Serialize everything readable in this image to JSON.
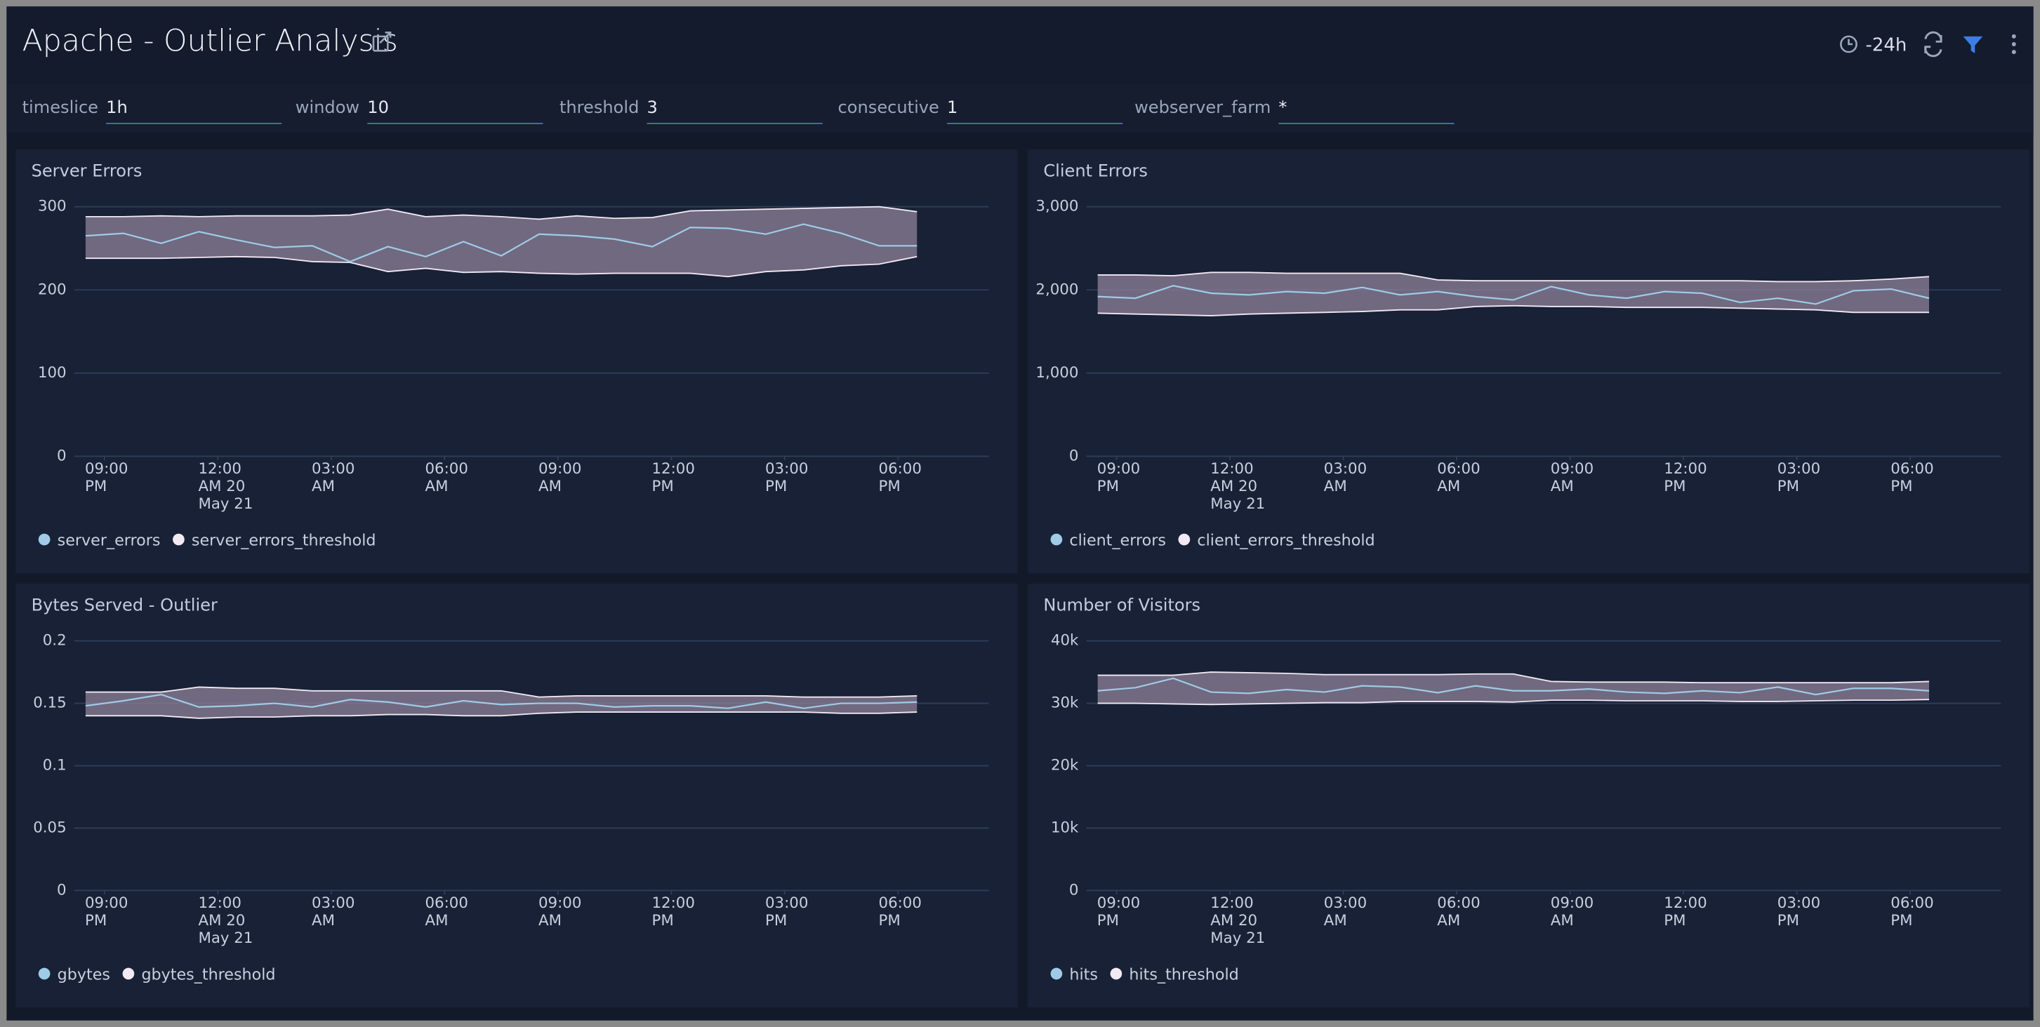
{
  "header": {
    "title": "Apache - Outlier Analysis",
    "time_range": "-24h"
  },
  "filters": [
    {
      "label": "timeslice",
      "value": "1h"
    },
    {
      "label": "window",
      "value": "10"
    },
    {
      "label": "threshold",
      "value": "3"
    },
    {
      "label": "consecutive",
      "value": "1"
    },
    {
      "label": "webserver_farm",
      "value": "*"
    }
  ],
  "chart_data": [
    {
      "type": "line",
      "title": "Server Errors",
      "x": [
        -3.5,
        -2.5,
        -1.5,
        -0.5,
        0.5,
        1.5,
        2.5,
        3.5,
        4.5,
        5.5,
        6.5,
        7.5,
        8.5,
        9.5,
        10.5,
        11.5,
        12.5,
        13.5,
        14.5,
        15.5,
        16.5,
        17.5,
        18.5
      ],
      "xlim": [
        -3.8,
        20.4
      ],
      "xticks": [
        {
          "value": -3,
          "label": "09:00\nPM"
        },
        {
          "value": 0,
          "label": "12:00\nAM 20\nMay 21"
        },
        {
          "value": 3,
          "label": "03:00\nAM"
        },
        {
          "value": 6,
          "label": "06:00\nAM"
        },
        {
          "value": 9,
          "label": "09:00\nAM"
        },
        {
          "value": 12,
          "label": "12:00\nPM"
        },
        {
          "value": 15,
          "label": "03:00\nPM"
        },
        {
          "value": 18,
          "label": "06:00\nPM"
        }
      ],
      "ylim": [
        0,
        300
      ],
      "yticks": [
        0,
        100,
        200,
        300
      ],
      "grid": true,
      "series": [
        {
          "name": "server_errors",
          "color": "#9fcbe6",
          "values": [
            265,
            268,
            256,
            270,
            260,
            251,
            253,
            234,
            252,
            240,
            258,
            241,
            267,
            265,
            261,
            252,
            275,
            274,
            267,
            279,
            268,
            253,
            253
          ]
        },
        {
          "name": "server_errors_threshold",
          "color": "#f2e9f2",
          "values": [
            288,
            288,
            289,
            288,
            289,
            289,
            289,
            290,
            297,
            288,
            290,
            288,
            285,
            289,
            286,
            287,
            295,
            296,
            297,
            298,
            299,
            300,
            294
          ],
          "lower": [
            238,
            238,
            238,
            239,
            240,
            239,
            234,
            233,
            222,
            226,
            221,
            222,
            220,
            219,
            220,
            220,
            220,
            216,
            222,
            224,
            229,
            231,
            240
          ]
        }
      ]
    },
    {
      "type": "line",
      "title": "Client Errors",
      "x": [
        -3.5,
        -2.5,
        -1.5,
        -0.5,
        0.5,
        1.5,
        2.5,
        3.5,
        4.5,
        5.5,
        6.5,
        7.5,
        8.5,
        9.5,
        10.5,
        11.5,
        12.5,
        13.5,
        14.5,
        15.5,
        16.5,
        17.5,
        18.5
      ],
      "xlim": [
        -3.8,
        20.4
      ],
      "xticks": [
        {
          "value": -3,
          "label": "09:00\nPM"
        },
        {
          "value": 0,
          "label": "12:00\nAM 20\nMay 21"
        },
        {
          "value": 3,
          "label": "03:00\nAM"
        },
        {
          "value": 6,
          "label": "06:00\nAM"
        },
        {
          "value": 9,
          "label": "09:00\nAM"
        },
        {
          "value": 12,
          "label": "12:00\nPM"
        },
        {
          "value": 15,
          "label": "03:00\nPM"
        },
        {
          "value": 18,
          "label": "06:00\nPM"
        }
      ],
      "ylim": [
        0,
        3000
      ],
      "yticks": [
        0,
        {
          "value": 1000,
          "label": "1,000"
        },
        {
          "value": 2000,
          "label": "2,000"
        },
        {
          "value": 3000,
          "label": "3,000"
        }
      ],
      "grid": true,
      "series": [
        {
          "name": "client_errors",
          "color": "#9fcbe6",
          "values": [
            1920,
            1900,
            2050,
            1960,
            1940,
            1980,
            1960,
            2030,
            1940,
            1980,
            1920,
            1880,
            2040,
            1940,
            1900,
            1980,
            1960,
            1850,
            1900,
            1830,
            1990,
            2010,
            1900
          ]
        },
        {
          "name": "client_errors_threshold",
          "color": "#f2e9f2",
          "values": [
            2180,
            2180,
            2170,
            2210,
            2210,
            2200,
            2200,
            2200,
            2200,
            2120,
            2110,
            2110,
            2110,
            2110,
            2110,
            2110,
            2110,
            2110,
            2100,
            2100,
            2110,
            2130,
            2160
          ],
          "lower": [
            1720,
            1710,
            1700,
            1690,
            1710,
            1720,
            1730,
            1740,
            1760,
            1760,
            1800,
            1810,
            1800,
            1800,
            1790,
            1790,
            1790,
            1780,
            1770,
            1760,
            1730,
            1730,
            1730
          ]
        }
      ]
    },
    {
      "type": "line",
      "title": "Bytes Served - Outlier",
      "x": [
        -3.5,
        -2.5,
        -1.5,
        -0.5,
        0.5,
        1.5,
        2.5,
        3.5,
        4.5,
        5.5,
        6.5,
        7.5,
        8.5,
        9.5,
        10.5,
        11.5,
        12.5,
        13.5,
        14.5,
        15.5,
        16.5,
        17.5,
        18.5
      ],
      "xlim": [
        -3.8,
        20.4
      ],
      "xticks": [
        {
          "value": -3,
          "label": "09:00\nPM"
        },
        {
          "value": 0,
          "label": "12:00\nAM 20\nMay 21"
        },
        {
          "value": 3,
          "label": "03:00\nAM"
        },
        {
          "value": 6,
          "label": "06:00\nAM"
        },
        {
          "value": 9,
          "label": "09:00\nAM"
        },
        {
          "value": 12,
          "label": "12:00\nPM"
        },
        {
          "value": 15,
          "label": "03:00\nPM"
        },
        {
          "value": 18,
          "label": "06:00\nPM"
        }
      ],
      "ylim": [
        0,
        0.2
      ],
      "yticks": [
        0,
        0.05,
        0.1,
        0.15,
        0.2
      ],
      "grid": true,
      "series": [
        {
          "name": "gbytes",
          "color": "#9fcbe6",
          "values": [
            0.148,
            0.152,
            0.157,
            0.147,
            0.148,
            0.15,
            0.147,
            0.153,
            0.151,
            0.147,
            0.152,
            0.149,
            0.15,
            0.15,
            0.147,
            0.148,
            0.148,
            0.146,
            0.151,
            0.146,
            0.15,
            0.15,
            0.151
          ]
        },
        {
          "name": "gbytes_threshold",
          "color": "#f2e9f2",
          "values": [
            0.159,
            0.159,
            0.159,
            0.163,
            0.162,
            0.162,
            0.16,
            0.16,
            0.16,
            0.16,
            0.16,
            0.16,
            0.155,
            0.156,
            0.156,
            0.156,
            0.156,
            0.156,
            0.156,
            0.155,
            0.155,
            0.155,
            0.156
          ],
          "lower": [
            0.14,
            0.14,
            0.14,
            0.138,
            0.139,
            0.139,
            0.14,
            0.14,
            0.141,
            0.141,
            0.14,
            0.14,
            0.142,
            0.143,
            0.143,
            0.143,
            0.143,
            0.143,
            0.143,
            0.143,
            0.142,
            0.142,
            0.143
          ]
        }
      ]
    },
    {
      "type": "line",
      "title": "Number of Visitors",
      "x": [
        -3.5,
        -2.5,
        -1.5,
        -0.5,
        0.5,
        1.5,
        2.5,
        3.5,
        4.5,
        5.5,
        6.5,
        7.5,
        8.5,
        9.5,
        10.5,
        11.5,
        12.5,
        13.5,
        14.5,
        15.5,
        16.5,
        17.5,
        18.5
      ],
      "xlim": [
        -3.8,
        20.4
      ],
      "xticks": [
        {
          "value": -3,
          "label": "09:00\nPM"
        },
        {
          "value": 0,
          "label": "12:00\nAM 20\nMay 21"
        },
        {
          "value": 3,
          "label": "03:00\nAM"
        },
        {
          "value": 6,
          "label": "06:00\nAM"
        },
        {
          "value": 9,
          "label": "09:00\nAM"
        },
        {
          "value": 12,
          "label": "12:00\nPM"
        },
        {
          "value": 15,
          "label": "03:00\nPM"
        },
        {
          "value": 18,
          "label": "06:00\nPM"
        }
      ],
      "ylim": [
        0,
        40000
      ],
      "yticks": [
        0,
        {
          "value": 10000,
          "label": "10k"
        },
        {
          "value": 20000,
          "label": "20k"
        },
        {
          "value": 30000,
          "label": "30k"
        },
        {
          "value": 40000,
          "label": "40k"
        }
      ],
      "grid": true,
      "series": [
        {
          "name": "hits",
          "color": "#9fcbe6",
          "values": [
            32000,
            32500,
            34000,
            31800,
            31600,
            32200,
            31800,
            32800,
            32600,
            31700,
            32800,
            32000,
            32000,
            32300,
            31800,
            31600,
            32000,
            31700,
            32600,
            31400,
            32400,
            32400,
            32000
          ]
        },
        {
          "name": "hits_threshold",
          "color": "#f2e9f2",
          "values": [
            34500,
            34500,
            34500,
            35000,
            34900,
            34800,
            34600,
            34600,
            34600,
            34600,
            34700,
            34700,
            33500,
            33400,
            33400,
            33400,
            33300,
            33300,
            33300,
            33300,
            33300,
            33300,
            33500
          ],
          "lower": [
            30000,
            30000,
            29900,
            29800,
            29900,
            30000,
            30100,
            30100,
            30300,
            30300,
            30300,
            30200,
            30500,
            30500,
            30400,
            30400,
            30400,
            30300,
            30300,
            30400,
            30500,
            30500,
            30600
          ]
        }
      ]
    }
  ]
}
